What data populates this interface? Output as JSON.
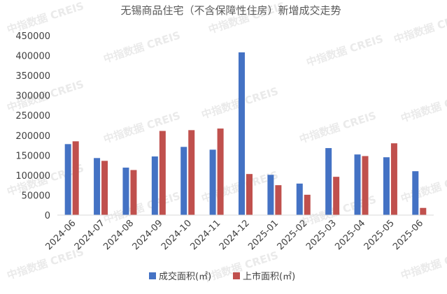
{
  "watermark": "中指数据 CREIS",
  "chart_data": {
    "type": "bar",
    "title": "无锡商品住宅（不含保障性住房）新增成交走势",
    "xlabel": "",
    "ylabel": "",
    "ylim": [
      0,
      450000
    ],
    "yticks": [
      0,
      50000,
      100000,
      150000,
      200000,
      250000,
      300000,
      350000,
      400000,
      450000
    ],
    "grid": false,
    "legend_position": "bottom",
    "categories": [
      "2024-06",
      "2024-07",
      "2024-08",
      "2024-09",
      "2024-10",
      "2024-11",
      "2024-12",
      "2025-01",
      "2025-02",
      "2025-03",
      "2025-04",
      "2025-05",
      "2025-06"
    ],
    "series": [
      {
        "name": "成交面积(㎡)",
        "color": "#4472c4",
        "values": [
          178000,
          143000,
          119000,
          147000,
          171000,
          164000,
          408000,
          101000,
          79000,
          168000,
          152000,
          145000,
          110000
        ]
      },
      {
        "name": "上市面积(㎡)",
        "color": "#c0504d",
        "values": [
          185000,
          136000,
          113000,
          211000,
          213000,
          217000,
          103000,
          75000,
          51000,
          96000,
          148000,
          180000,
          18000
        ]
      }
    ]
  }
}
